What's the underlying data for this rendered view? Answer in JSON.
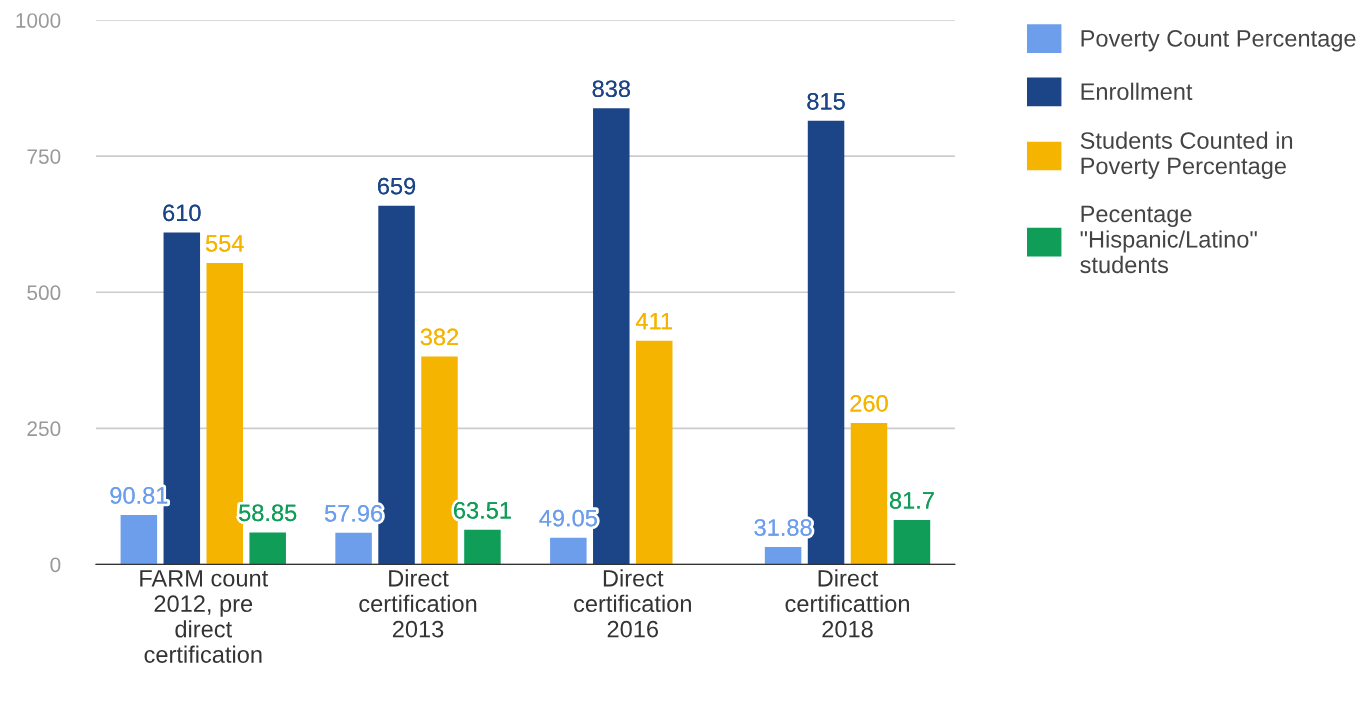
{
  "chart_data": {
    "type": "bar",
    "categories": [
      "FARM count\n2012, pre\ndirect\ncertification",
      "Direct\ncertification\n2013",
      "Direct\ncertification\n2016",
      "Direct\ncertificattion\n2018"
    ],
    "series": [
      {
        "name": "Poverty Count Percentage",
        "color": "#6d9eeb",
        "values": [
          90.81,
          57.96,
          49.05,
          31.88
        ]
      },
      {
        "name": "Enrollment",
        "color": "#1c4587",
        "values": [
          610,
          659,
          838,
          815
        ]
      },
      {
        "name": "Students Counted in\nPoverty Percentage",
        "color": "#f4b400",
        "values": [
          554,
          382,
          411,
          260
        ]
      },
      {
        "name": "Pecentage\n\"Hispanic/Latino\"\nstudents",
        "color": "#0f9d58",
        "values": [
          58.85,
          63.51,
          null,
          81.7
        ]
      }
    ],
    "ylim": [
      0,
      1000
    ],
    "yticks": [
      0,
      250,
      500,
      750,
      1000
    ],
    "grid": "y",
    "legend": "top right",
    "data_labels": true
  }
}
